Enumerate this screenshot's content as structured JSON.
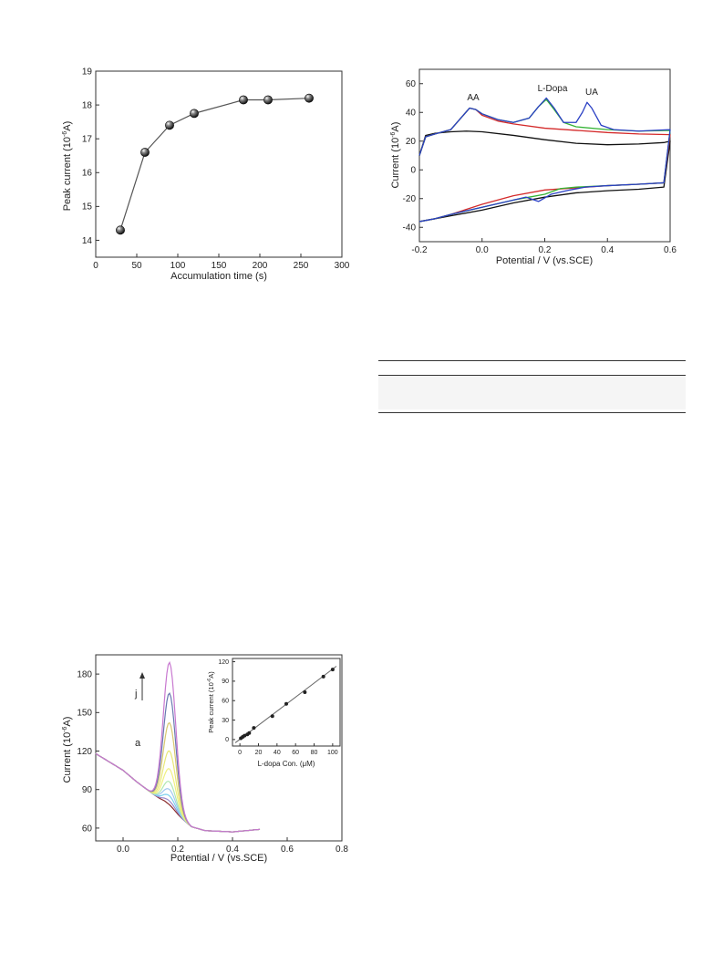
{
  "fig1": {
    "xlabel": "Accumulation time (s)",
    "ylabel": "Peak current (10",
    "ylabel_exp": "-6",
    "ylabel_tail": "A)",
    "xticks": [
      "0",
      "50",
      "100",
      "150",
      "200",
      "250",
      "300"
    ],
    "yticks": [
      "14",
      "15",
      "16",
      "17",
      "18",
      "19"
    ]
  },
  "fig2": {
    "xlabel": "Potential / V (vs.SCE)",
    "ylabel": "Current (10",
    "ylabel_exp": "-6",
    "ylabel_tail": "A)",
    "xticks": [
      "-0.2",
      "0.0",
      "0.2",
      "0.4",
      "0.6"
    ],
    "yticks": [
      "60",
      "40",
      "20",
      "0",
      "-20",
      "-40"
    ],
    "peaks": [
      "AA",
      "L-Dopa",
      "UA"
    ]
  },
  "fig3": {
    "xlabel": "Potential / V (vs.SCE)",
    "ylabel": "Current (10",
    "ylabel_exp": "-6",
    "ylabel_tail": "A)",
    "xticks": [
      "0.0",
      "0.2",
      "0.4",
      "0.6",
      "0.8"
    ],
    "yticks": [
      "180",
      "150",
      "120",
      "90",
      "60"
    ],
    "arrow_top": "j",
    "arrow_bottom": "a",
    "inset": {
      "xlabel": "L-dopa Con. (μM)",
      "ylabel": "Peak current (10",
      "ylabel_exp": "-6",
      "ylabel_tail": "A)",
      "xticks": [
        "0",
        "20",
        "40",
        "60",
        "80",
        "100"
      ],
      "yticks": [
        "0",
        "30",
        "60",
        "90",
        "120"
      ]
    }
  },
  "colors": {
    "black": "#111111",
    "red": "#d42a2a",
    "green": "#35b335",
    "blue": "#2a3fc4",
    "cyan": "#2ab8c8"
  },
  "chart_data": [
    {
      "type": "scatter",
      "title": "",
      "xlabel": "Accumulation time (s)",
      "ylabel": "Peak current (10-6A)",
      "xlim": [
        0,
        300
      ],
      "ylim": [
        13.5,
        19
      ],
      "grid": false,
      "series": [
        {
          "x": [
            30,
            60,
            90,
            120,
            180,
            210,
            260
          ],
          "y": [
            14.3,
            16.6,
            17.4,
            17.75,
            18.15,
            18.15,
            18.2
          ]
        }
      ]
    },
    {
      "type": "line",
      "title": "",
      "xlabel": "Potential / V (vs.SCE)",
      "ylabel": "Current (10-6A)",
      "xlim": [
        -0.2,
        0.6
      ],
      "ylim": [
        -50,
        70
      ],
      "grid": false,
      "annotations": [
        "AA",
        "L-Dopa",
        "UA"
      ],
      "series": [
        {
          "color": "#111111",
          "anodic": {
            "x": [
              -0.2,
              -0.18,
              -0.15,
              -0.1,
              -0.05,
              0.0,
              0.1,
              0.2,
              0.3,
              0.4,
              0.5,
              0.58,
              0.6
            ],
            "y": [
              10,
              24,
              25.5,
              26.5,
              27,
              26.5,
              24,
              21,
              18.5,
              17.5,
              18,
              19,
              20
            ]
          },
          "cathodic": {
            "x": [
              0.6,
              0.58,
              0.5,
              0.4,
              0.3,
              0.2,
              0.1,
              0.0,
              -0.1,
              -0.15,
              -0.2
            ],
            "y": [
              20,
              -12,
              -13.5,
              -14.5,
              -16,
              -19,
              -23,
              -28,
              -32,
              -34,
              -36
            ]
          }
        },
        {
          "color": "#d42a2a",
          "anodic": {
            "x": [
              -0.2,
              -0.18,
              -0.15,
              -0.1,
              -0.06,
              -0.04,
              -0.02,
              0.0,
              0.05,
              0.1,
              0.2,
              0.3,
              0.4,
              0.5,
              0.6
            ],
            "y": [
              10,
              23,
              25,
              28,
              38,
              43,
              42,
              38,
              34,
              32,
              29,
              27.5,
              26,
              25,
              24.5
            ]
          },
          "cathodic": {
            "x": [
              0.6,
              0.58,
              0.5,
              0.4,
              0.3,
              0.2,
              0.1,
              0.0,
              -0.1,
              -0.15,
              -0.2
            ],
            "y": [
              24.5,
              -9,
              -10,
              -11,
              -12.5,
              -14,
              -18,
              -24,
              -31,
              -34,
              -36
            ]
          }
        },
        {
          "color": "#35b335",
          "anodic": {
            "x": [
              -0.2,
              -0.18,
              -0.15,
              -0.1,
              -0.06,
              -0.04,
              -0.02,
              0.0,
              0.05,
              0.1,
              0.15,
              0.18,
              0.205,
              0.23,
              0.26,
              0.3,
              0.4,
              0.5,
              0.6
            ],
            "y": [
              10,
              23,
              25,
              28,
              38,
              43,
              42,
              39,
              35,
              33,
              36,
              44,
              49,
              42,
              33,
              30,
              28,
              27,
              27.5
            ]
          },
          "cathodic": {
            "x": [
              0.6,
              0.58,
              0.5,
              0.4,
              0.3,
              0.25,
              0.2,
              0.15,
              0.1,
              0.0,
              -0.1,
              -0.15,
              -0.2
            ],
            "y": [
              27.5,
              -9,
              -10,
              -11,
              -12,
              -13,
              -17,
              -19,
              -21,
              -26,
              -31,
              -34,
              -36
            ]
          }
        },
        {
          "color": "#2a3fc4",
          "anodic": {
            "x": [
              -0.2,
              -0.18,
              -0.15,
              -0.1,
              -0.06,
              -0.04,
              -0.02,
              0.0,
              0.05,
              0.1,
              0.15,
              0.18,
              0.205,
              0.23,
              0.26,
              0.3,
              0.32,
              0.335,
              0.35,
              0.38,
              0.42,
              0.5,
              0.6
            ],
            "y": [
              10,
              23,
              25,
              28,
              38,
              43,
              42,
              39,
              35,
              33,
              36,
              44,
              50,
              43,
              33,
              33,
              40,
              47,
              43,
              31,
              28,
              27,
              28
            ]
          },
          "cathodic": {
            "x": [
              0.6,
              0.58,
              0.5,
              0.4,
              0.33,
              0.28,
              0.22,
              0.18,
              0.14,
              0.1,
              0.0,
              -0.1,
              -0.15,
              -0.2
            ],
            "y": [
              28,
              -9,
              -10,
              -11,
              -12,
              -14,
              -17,
              -22,
              -19,
              -21,
              -26,
              -31,
              -34,
              -36
            ]
          }
        }
      ]
    },
    {
      "type": "line",
      "title": "",
      "xlabel": "Potential / V (vs.SCE)",
      "ylabel": "Current (10-6A)",
      "xlim": [
        -0.1,
        0.8
      ],
      "ylim": [
        50,
        195
      ],
      "grid": false,
      "baseline": {
        "x": [
          -0.1,
          0.0,
          0.05,
          0.1,
          0.15,
          0.2,
          0.25,
          0.3,
          0.4,
          0.5
        ],
        "y": [
          118,
          105,
          96,
          88,
          80,
          70,
          61,
          58,
          57,
          59
        ]
      },
      "peak_potential": 0.17,
      "peak_heights": [
        2,
        5,
        9,
        14,
        20,
        30,
        44,
        66,
        89,
        113
      ],
      "series_colors": [
        "#8a2a2a",
        "#9a88cc",
        "#7ad0ee",
        "#a0c8f0",
        "#b0e8b0",
        "#f0f080",
        "#e8e878",
        "#d8c870",
        "#6878b0",
        "#c878d0"
      ],
      "inset": {
        "type": "scatter",
        "xlabel": "L-dopa Con. (μM)",
        "ylabel": "Peak current (10-6A)",
        "xlim": [
          -8,
          108
        ],
        "ylim": [
          -10,
          125
        ],
        "series": [
          {
            "x": [
              1,
              3,
              5,
              8,
              10,
              15,
              35,
              50,
              70,
              90,
              100
            ],
            "y": [
              2,
              4,
              6,
              8,
              10,
              18,
              36,
              55,
              73,
              97,
              108
            ]
          }
        ],
        "fit": {
          "x": [
            -5,
            104
          ],
          "y": [
            -5,
            113
          ]
        }
      }
    }
  ]
}
